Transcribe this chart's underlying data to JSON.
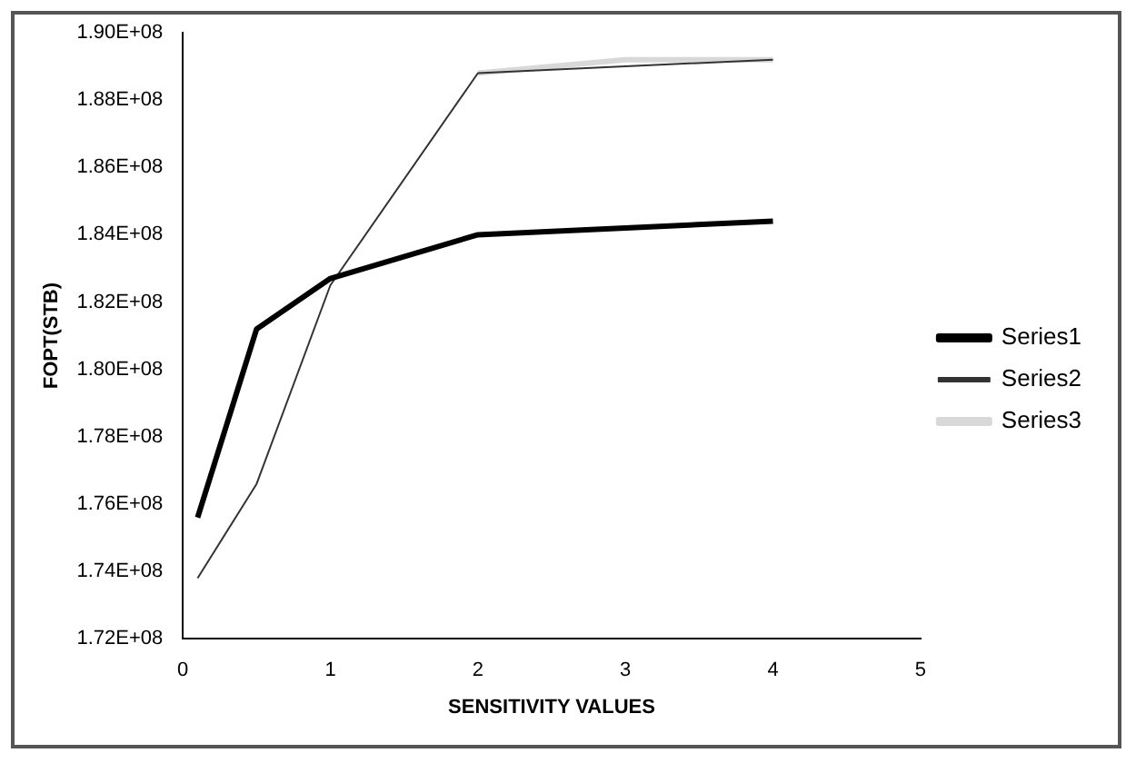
{
  "chart_data": {
    "type": "line",
    "xlabel": "SENSITIVITY VALUES",
    "ylabel": "FOPT(STB)",
    "x": [
      0.1,
      0.5,
      1,
      2,
      3,
      4
    ],
    "series": [
      {
        "name": "Series1",
        "color": "#000000",
        "values": [
          175600000,
          181200000,
          182700000,
          184000000,
          184200000,
          184400000
        ]
      },
      {
        "name": "Series2",
        "color": "#333333",
        "values": [
          173800000,
          176600000,
          182500000,
          188800000,
          189000000,
          189200000
        ]
      },
      {
        "name": "Series3",
        "color": "#d8d8d8",
        "values": [
          null,
          null,
          null,
          188800000,
          189200000,
          189200000
        ]
      }
    ],
    "xlim": [
      0,
      5
    ],
    "xticks": [
      0,
      1,
      2,
      3,
      4,
      5
    ],
    "ylim": [
      172000000,
      190000000
    ],
    "yticks": [
      {
        "value": 172000000,
        "label": "1.72E+08"
      },
      {
        "value": 174000000,
        "label": "1.74E+08"
      },
      {
        "value": 176000000,
        "label": "1.76E+08"
      },
      {
        "value": 178000000,
        "label": "1.78E+08"
      },
      {
        "value": 180000000,
        "label": "1.80E+08"
      },
      {
        "value": 182000000,
        "label": "1.82E+08"
      },
      {
        "value": 184000000,
        "label": "1.84E+08"
      },
      {
        "value": 186000000,
        "label": "1.86E+08"
      },
      {
        "value": 188000000,
        "label": "1.88E+08"
      },
      {
        "value": 190000000,
        "label": "1.90E+08"
      }
    ],
    "grid": false,
    "legend": "right",
    "marker": "none",
    "line_style": "solid"
  }
}
